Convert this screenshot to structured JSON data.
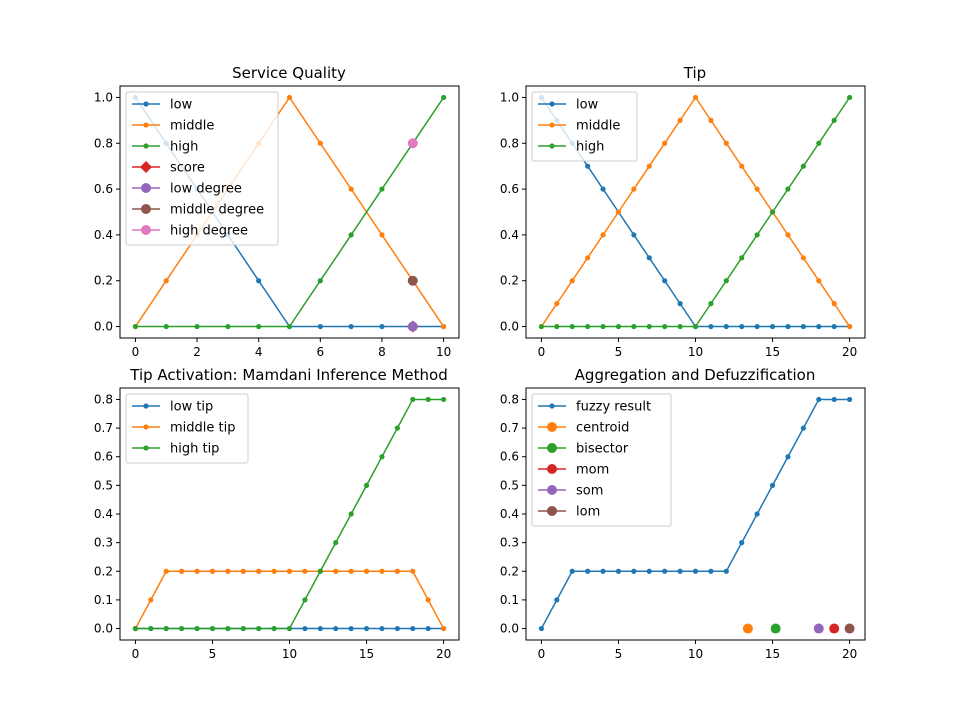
{
  "figure": {
    "background": "#ffffff"
  },
  "chart_data": [
    {
      "type": "line",
      "title": "Service Quality",
      "xlabel": "",
      "ylabel": "",
      "xlim": [
        -0.5,
        10.5
      ],
      "ylim": [
        -0.05,
        1.05
      ],
      "xticks": [
        0,
        2,
        4,
        6,
        8,
        10
      ],
      "xtick_labels": [
        "0",
        "2",
        "4",
        "6",
        "8",
        "10"
      ],
      "yticks": [
        0,
        0.2,
        0.4,
        0.6,
        0.8,
        1.0
      ],
      "ytick_labels": [
        "0.0",
        "0.2",
        "0.4",
        "0.6",
        "0.8",
        "1.0"
      ],
      "grid": false,
      "legend": "top-left",
      "series": [
        {
          "name": "low",
          "color": "#1f77b4",
          "marker": "dot",
          "x": [
            0,
            1,
            2,
            3,
            4,
            5,
            6,
            7,
            8,
            9,
            10
          ],
          "y": [
            1.0,
            0.8,
            0.6,
            0.4,
            0.2,
            0.0,
            0.0,
            0.0,
            0.0,
            0.0,
            0.0
          ]
        },
        {
          "name": "middle",
          "color": "#ff7f0e",
          "marker": "dot",
          "x": [
            0,
            1,
            2,
            3,
            4,
            5,
            6,
            7,
            8,
            9,
            10
          ],
          "y": [
            0.0,
            0.2,
            0.4,
            0.6,
            0.8,
            1.0,
            0.8,
            0.6,
            0.4,
            0.2,
            0.0
          ]
        },
        {
          "name": "high",
          "color": "#2ca02c",
          "marker": "dot",
          "x": [
            0,
            1,
            2,
            3,
            4,
            5,
            6,
            7,
            8,
            9,
            10
          ],
          "y": [
            0.0,
            0.0,
            0.0,
            0.0,
            0.0,
            0.0,
            0.2,
            0.4,
            0.6,
            0.8,
            1.0
          ]
        },
        {
          "name": "score",
          "color": "#d62728",
          "marker": "diamond",
          "x": [
            9
          ],
          "y": [
            0.0
          ]
        },
        {
          "name": "low degree",
          "color": "#9467bd",
          "marker": "circle",
          "x": [
            9
          ],
          "y": [
            0.0
          ]
        },
        {
          "name": "middle degree",
          "color": "#8c564b",
          "marker": "circle",
          "x": [
            9
          ],
          "y": [
            0.2
          ]
        },
        {
          "name": "high degree",
          "color": "#e377c2",
          "marker": "circle",
          "x": [
            9
          ],
          "y": [
            0.8
          ]
        }
      ]
    },
    {
      "type": "line",
      "title": "Tip",
      "xlabel": "",
      "ylabel": "",
      "xlim": [
        -1,
        21
      ],
      "ylim": [
        -0.05,
        1.05
      ],
      "xticks": [
        0,
        5,
        10,
        15,
        20
      ],
      "xtick_labels": [
        "0",
        "5",
        "10",
        "15",
        "20"
      ],
      "yticks": [
        0,
        0.2,
        0.4,
        0.6,
        0.8,
        1.0
      ],
      "ytick_labels": [
        "0.0",
        "0.2",
        "0.4",
        "0.6",
        "0.8",
        "1.0"
      ],
      "grid": false,
      "legend": "top-left",
      "series": [
        {
          "name": "low",
          "color": "#1f77b4",
          "marker": "dot",
          "x": [
            0,
            1,
            2,
            3,
            4,
            5,
            6,
            7,
            8,
            9,
            10,
            11,
            12,
            13,
            14,
            15,
            16,
            17,
            18,
            19,
            20
          ],
          "y": [
            1.0,
            0.9,
            0.8,
            0.7,
            0.6,
            0.5,
            0.4,
            0.3,
            0.2,
            0.1,
            0.0,
            0.0,
            0.0,
            0.0,
            0.0,
            0.0,
            0.0,
            0.0,
            0.0,
            0.0,
            0.0
          ]
        },
        {
          "name": "middle",
          "color": "#ff7f0e",
          "marker": "dot",
          "x": [
            0,
            1,
            2,
            3,
            4,
            5,
            6,
            7,
            8,
            9,
            10,
            11,
            12,
            13,
            14,
            15,
            16,
            17,
            18,
            19,
            20
          ],
          "y": [
            0.0,
            0.1,
            0.2,
            0.3,
            0.4,
            0.5,
            0.6,
            0.7,
            0.8,
            0.9,
            1.0,
            0.9,
            0.8,
            0.7,
            0.6,
            0.5,
            0.4,
            0.3,
            0.2,
            0.1,
            0.0
          ]
        },
        {
          "name": "high",
          "color": "#2ca02c",
          "marker": "dot",
          "x": [
            0,
            1,
            2,
            3,
            4,
            5,
            6,
            7,
            8,
            9,
            10,
            11,
            12,
            13,
            14,
            15,
            16,
            17,
            18,
            19,
            20
          ],
          "y": [
            0.0,
            0.0,
            0.0,
            0.0,
            0.0,
            0.0,
            0.0,
            0.0,
            0.0,
            0.0,
            0.0,
            0.1,
            0.2,
            0.3,
            0.4,
            0.5,
            0.6,
            0.7,
            0.8,
            0.9,
            1.0
          ]
        }
      ]
    },
    {
      "type": "line",
      "title": "Tip Activation: Mamdani Inference Method",
      "xlabel": "",
      "ylabel": "",
      "xlim": [
        -1,
        21
      ],
      "ylim": [
        -0.04,
        0.84
      ],
      "xticks": [
        0,
        5,
        10,
        15,
        20
      ],
      "xtick_labels": [
        "0",
        "5",
        "10",
        "15",
        "20"
      ],
      "yticks": [
        0,
        0.1,
        0.2,
        0.3,
        0.4,
        0.5,
        0.6,
        0.7,
        0.8
      ],
      "ytick_labels": [
        "0.0",
        "0.1",
        "0.2",
        "0.3",
        "0.4",
        "0.5",
        "0.6",
        "0.7",
        "0.8"
      ],
      "grid": false,
      "legend": "top-left",
      "series": [
        {
          "name": "low tip",
          "color": "#1f77b4",
          "marker": "dot",
          "x": [
            0,
            1,
            2,
            3,
            4,
            5,
            6,
            7,
            8,
            9,
            10,
            11,
            12,
            13,
            14,
            15,
            16,
            17,
            18,
            19,
            20
          ],
          "y": [
            0,
            0,
            0,
            0,
            0,
            0,
            0,
            0,
            0,
            0,
            0,
            0,
            0,
            0,
            0,
            0,
            0,
            0,
            0,
            0,
            0
          ]
        },
        {
          "name": "middle tip",
          "color": "#ff7f0e",
          "marker": "dot",
          "x": [
            0,
            1,
            2,
            3,
            4,
            5,
            6,
            7,
            8,
            9,
            10,
            11,
            12,
            13,
            14,
            15,
            16,
            17,
            18,
            19,
            20
          ],
          "y": [
            0.0,
            0.1,
            0.2,
            0.2,
            0.2,
            0.2,
            0.2,
            0.2,
            0.2,
            0.2,
            0.2,
            0.2,
            0.2,
            0.2,
            0.2,
            0.2,
            0.2,
            0.2,
            0.2,
            0.1,
            0.0
          ]
        },
        {
          "name": "high tip",
          "color": "#2ca02c",
          "marker": "dot",
          "x": [
            0,
            1,
            2,
            3,
            4,
            5,
            6,
            7,
            8,
            9,
            10,
            11,
            12,
            13,
            14,
            15,
            16,
            17,
            18,
            19,
            20
          ],
          "y": [
            0.0,
            0.0,
            0.0,
            0.0,
            0.0,
            0.0,
            0.0,
            0.0,
            0.0,
            0.0,
            0.0,
            0.1,
            0.2,
            0.3,
            0.4,
            0.5,
            0.6,
            0.7,
            0.8,
            0.8,
            0.8
          ]
        }
      ]
    },
    {
      "type": "line",
      "title": "Aggregation and Defuzzification",
      "xlabel": "",
      "ylabel": "",
      "xlim": [
        -1,
        21
      ],
      "ylim": [
        -0.04,
        0.84
      ],
      "xticks": [
        0,
        5,
        10,
        15,
        20
      ],
      "xtick_labels": [
        "0",
        "5",
        "10",
        "15",
        "20"
      ],
      "yticks": [
        0,
        0.1,
        0.2,
        0.3,
        0.4,
        0.5,
        0.6,
        0.7,
        0.8
      ],
      "ytick_labels": [
        "0.0",
        "0.1",
        "0.2",
        "0.3",
        "0.4",
        "0.5",
        "0.6",
        "0.7",
        "0.8"
      ],
      "grid": false,
      "legend": "top-left",
      "series": [
        {
          "name": "fuzzy result",
          "color": "#1f77b4",
          "marker": "dot",
          "x": [
            0,
            1,
            2,
            3,
            4,
            5,
            6,
            7,
            8,
            9,
            10,
            11,
            12,
            13,
            14,
            15,
            16,
            17,
            18,
            19,
            20
          ],
          "y": [
            0.0,
            0.1,
            0.2,
            0.2,
            0.2,
            0.2,
            0.2,
            0.2,
            0.2,
            0.2,
            0.2,
            0.2,
            0.2,
            0.3,
            0.4,
            0.5,
            0.6,
            0.7,
            0.8,
            0.8,
            0.8
          ]
        },
        {
          "name": "centroid",
          "color": "#ff7f0e",
          "marker": "circle",
          "x": [
            13.4
          ],
          "y": [
            0.0
          ]
        },
        {
          "name": "bisector",
          "color": "#2ca02c",
          "marker": "circle",
          "x": [
            15.2
          ],
          "y": [
            0.0
          ]
        },
        {
          "name": "mom",
          "color": "#d62728",
          "marker": "circle",
          "x": [
            19.0
          ],
          "y": [
            0.0
          ]
        },
        {
          "name": "som",
          "color": "#9467bd",
          "marker": "circle",
          "x": [
            18.0
          ],
          "y": [
            0.0
          ]
        },
        {
          "name": "lom",
          "color": "#8c564b",
          "marker": "circle",
          "x": [
            20.0
          ],
          "y": [
            0.0
          ]
        }
      ]
    }
  ]
}
